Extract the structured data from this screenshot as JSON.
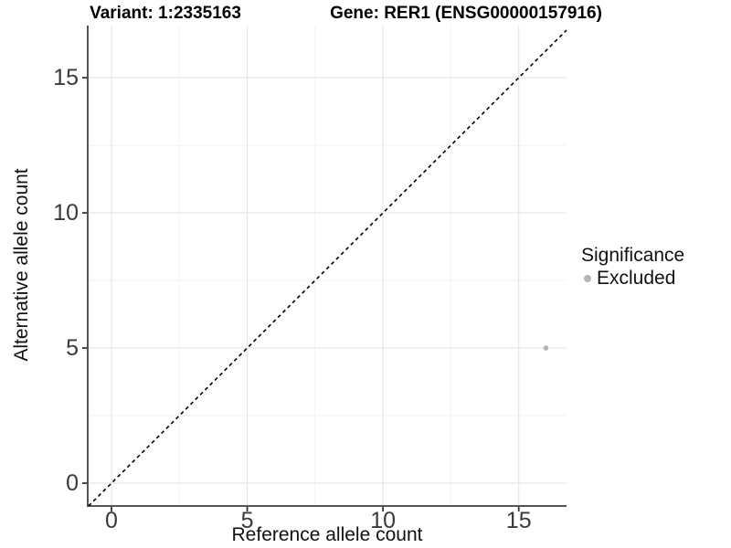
{
  "chart_data": {
    "type": "scatter",
    "title_left": "Variant: 1:2335163",
    "title_right": "Gene: RER1 (ENSG00000157916)",
    "xlabel": "Reference allele count",
    "ylabel": "Alternative allele count",
    "xlim": [
      -0.875,
      16.76
    ],
    "ylim": [
      -0.845,
      16.93
    ],
    "x_major_ticks": [
      0,
      5,
      10,
      15
    ],
    "y_major_ticks": [
      0,
      5,
      10,
      15
    ],
    "x_minor_ticks": [
      2.5,
      7.5,
      12.5
    ],
    "y_minor_ticks": [
      2.5,
      7.5,
      12.5
    ],
    "grid": true,
    "reference_line": {
      "type": "identity",
      "style": "dashed",
      "color": "#000000"
    },
    "series": [
      {
        "name": "Excluded",
        "color": "#b5b5b5",
        "points": [
          {
            "x": 16,
            "y": 5
          }
        ]
      }
    ],
    "legend": {
      "title": "Significance",
      "position": "right",
      "items": [
        {
          "label": "Excluded",
          "color": "#b5b5b5",
          "marker": "circle"
        }
      ]
    }
  },
  "colors": {
    "background": "#ffffff",
    "grid_major": "#e6e6e6",
    "grid_minor": "#f2f2f2",
    "axis_line": "#555555",
    "tick_mark": "#333333",
    "point": "#b5b5b5"
  }
}
